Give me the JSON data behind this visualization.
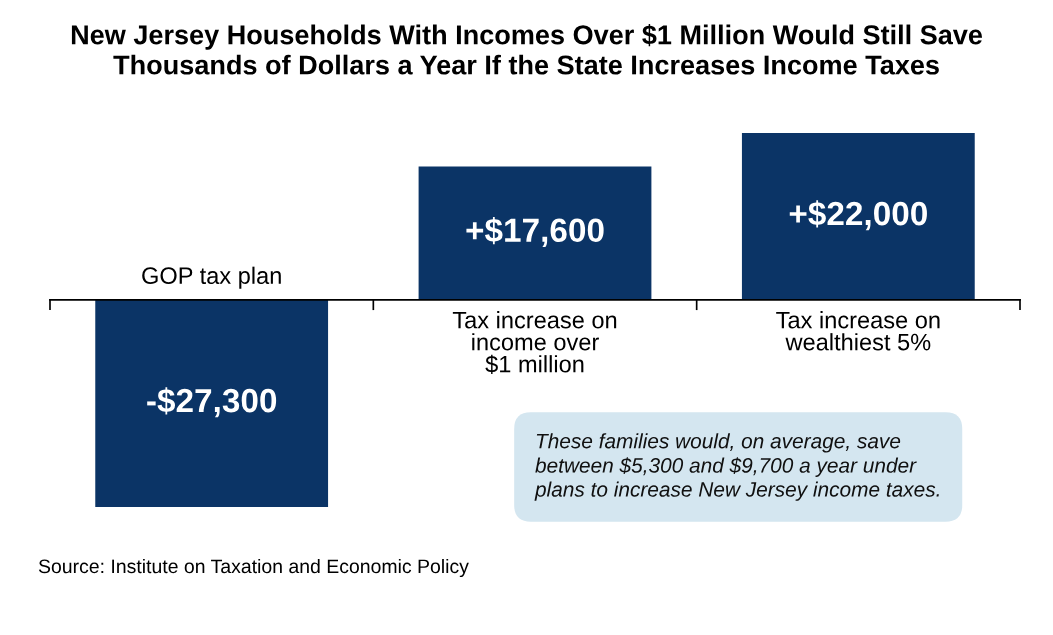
{
  "chart_data": {
    "type": "bar",
    "title": "New Jersey Households With Incomes Over $1 Million Would Still Save\nThousands of Dollars a Year If the State Increases Income Taxes",
    "categories": [
      "GOP tax plan",
      "Tax increase on\nincome over\n$1 million",
      "Tax increase on\nwealthiest 5%"
    ],
    "values": [
      -27300,
      17600,
      22000
    ],
    "value_labels": [
      "-$27,300",
      "+$17,600",
      "+$22,000"
    ],
    "color": "#0b3466",
    "annotations": [
      "These families would, on average, save\nbetween $5,300 and $9,700 a year under\nplans to increase New Jersey income taxes.",
      "Source: Institute on Taxation and Economic Policy"
    ]
  }
}
